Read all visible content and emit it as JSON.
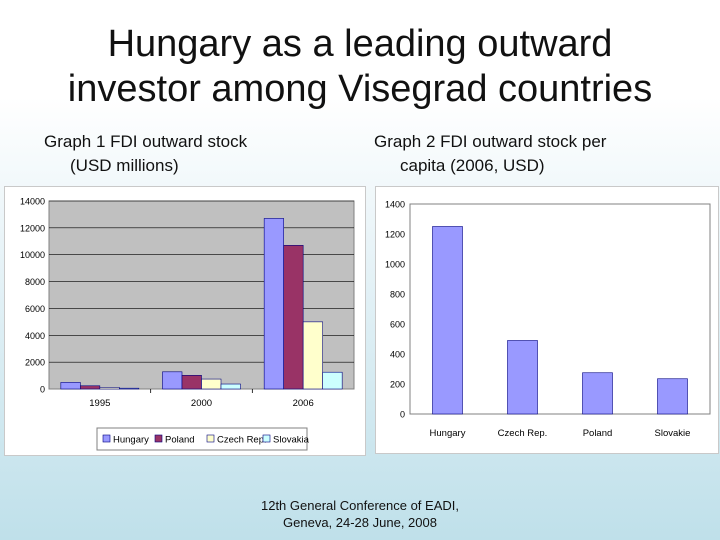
{
  "slide": {
    "title_line1": "Hungary as a leading outward",
    "title_line2": "investor among Visegrad countries",
    "footer_line1": "12th General Conference of EADI,",
    "footer_line2": "Geneva, 24-28 June, 2008"
  },
  "chart_data": [
    {
      "type": "bar",
      "caption_line1": "Graph 1 FDI outward stock",
      "caption_line2": "(USD millions)",
      "categories": [
        "1995",
        "2000",
        "2006"
      ],
      "series": [
        {
          "name": "Hungary",
          "color": "#9999ff",
          "values": [
            490,
            1280,
            12700
          ]
        },
        {
          "name": "Poland",
          "color": "#993366",
          "values": [
            240,
            1020,
            10700
          ]
        },
        {
          "name": "Czech Rep.",
          "color": "#ffffcc",
          "values": [
            120,
            740,
            5000
          ]
        },
        {
          "name": "Slovakia",
          "color": "#ccffff",
          "values": [
            60,
            370,
            1250
          ]
        }
      ],
      "yticks": [
        "0",
        "2000",
        "4000",
        "6000",
        "8000",
        "10000",
        "12000",
        "14000"
      ],
      "ylim": [
        0,
        14000
      ],
      "plot_bg": "#c0c0c0",
      "grid": true,
      "legend": "bottom"
    },
    {
      "type": "bar",
      "caption_line1": "Graph 2 FDI outward stock per",
      "caption_line2": "capita (2006, USD)",
      "categories": [
        "Hungary",
        "Czech Rep.",
        "Poland",
        "Slovakie"
      ],
      "values": [
        1250,
        490,
        275,
        235
      ],
      "color": "#9999ff",
      "yticks": [
        "0",
        "200",
        "400",
        "600",
        "800",
        "1000",
        "1200",
        "1400"
      ],
      "ylim": [
        0,
        1400
      ],
      "plot_bg": "#ffffff",
      "grid": false,
      "legend": "none"
    }
  ]
}
